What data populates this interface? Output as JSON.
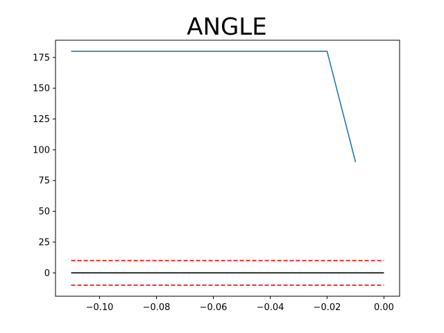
{
  "chart_data": {
    "type": "line",
    "title": "ANGLE",
    "xlabel": "",
    "ylabel": "",
    "xlim": [
      -0.1155,
      0.0055
    ],
    "ylim": [
      -19,
      189
    ],
    "xticks": [
      -0.1,
      -0.08,
      -0.06,
      -0.04,
      -0.02,
      0.0
    ],
    "xtick_labels": [
      "−0.10",
      "−0.08",
      "−0.06",
      "−0.04",
      "−0.02",
      "0.00"
    ],
    "yticks": [
      0,
      25,
      50,
      75,
      100,
      125,
      150,
      175
    ],
    "ytick_labels": [
      "0",
      "25",
      "50",
      "75",
      "100",
      "125",
      "150",
      "175"
    ],
    "grid": false,
    "series": [
      {
        "style": "solid",
        "color": "#1f77b4",
        "x": [
          -0.11,
          -0.02,
          -0.01
        ],
        "y": [
          180,
          180,
          90
        ]
      },
      {
        "style": "solid",
        "color": "#000000",
        "x": [
          -0.11,
          0.0
        ],
        "y": [
          0,
          0
        ]
      },
      {
        "style": "dashed",
        "color": "#ff0000",
        "x": [
          -0.11,
          0.0
        ],
        "y": [
          10,
          10
        ]
      },
      {
        "style": "dashed",
        "color": "#ff0000",
        "x": [
          -0.11,
          0.0
        ],
        "y": [
          -10,
          -10
        ]
      }
    ]
  }
}
